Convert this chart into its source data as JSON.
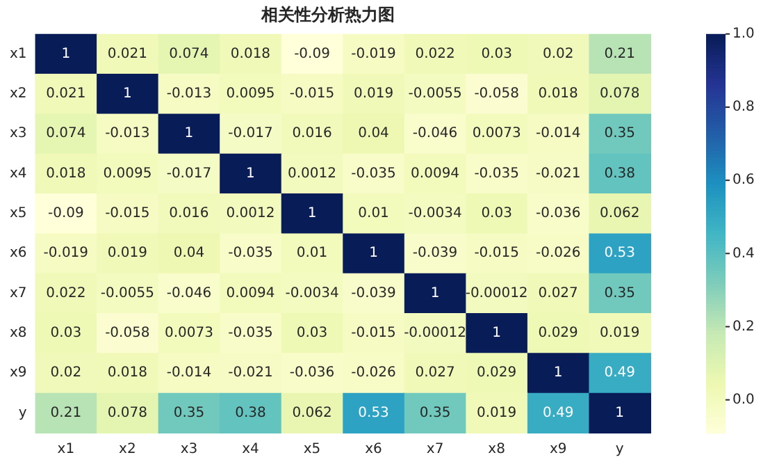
{
  "chart_data": {
    "type": "heatmap",
    "title": "相关性分析热力图",
    "categories": [
      "x1",
      "x2",
      "x3",
      "x4",
      "x5",
      "x6",
      "x7",
      "x8",
      "x9",
      "y"
    ],
    "y_categories": [
      "x1",
      "x2",
      "x3",
      "x4",
      "x5",
      "x6",
      "x7",
      "x8",
      "x9",
      "y"
    ],
    "cells": [
      [
        1,
        0.021,
        0.074,
        0.018,
        -0.09,
        -0.019,
        0.022,
        0.03,
        0.02,
        0.21
      ],
      [
        0.021,
        1,
        -0.013,
        0.0095,
        -0.015,
        0.019,
        -0.0055,
        -0.058,
        0.018,
        0.078
      ],
      [
        0.074,
        -0.013,
        1,
        -0.017,
        0.016,
        0.04,
        -0.046,
        0.0073,
        -0.014,
        0.35
      ],
      [
        0.018,
        0.0095,
        -0.017,
        1,
        0.0012,
        -0.035,
        0.0094,
        -0.035,
        -0.021,
        0.38
      ],
      [
        -0.09,
        -0.015,
        0.016,
        0.0012,
        1,
        0.01,
        -0.0034,
        0.03,
        -0.036,
        0.062
      ],
      [
        -0.019,
        0.019,
        0.04,
        -0.035,
        0.01,
        1,
        -0.039,
        -0.015,
        -0.026,
        0.53
      ],
      [
        0.022,
        -0.0055,
        -0.046,
        0.0094,
        -0.0034,
        -0.039,
        1,
        -0.00012,
        0.027,
        0.35
      ],
      [
        0.03,
        -0.058,
        0.0073,
        -0.035,
        0.03,
        -0.015,
        -0.00012,
        1,
        0.029,
        0.019
      ],
      [
        0.02,
        0.018,
        -0.014,
        -0.021,
        -0.036,
        -0.026,
        0.027,
        0.029,
        1,
        0.49
      ],
      [
        0.21,
        0.078,
        0.35,
        0.38,
        0.062,
        0.53,
        0.35,
        0.019,
        0.49,
        1
      ]
    ],
    "clim": [
      -0.09,
      1
    ],
    "cticks": [
      {
        "value": 0,
        "label": "0.0"
      },
      {
        "value": 0.2,
        "label": "0.2"
      },
      {
        "value": 0.4,
        "label": "0.4"
      },
      {
        "value": 0.6,
        "label": "0.6"
      },
      {
        "value": 0.8,
        "label": "0.8"
      },
      {
        "value": 1,
        "label": "1.0"
      }
    ],
    "data_labels": true
  }
}
